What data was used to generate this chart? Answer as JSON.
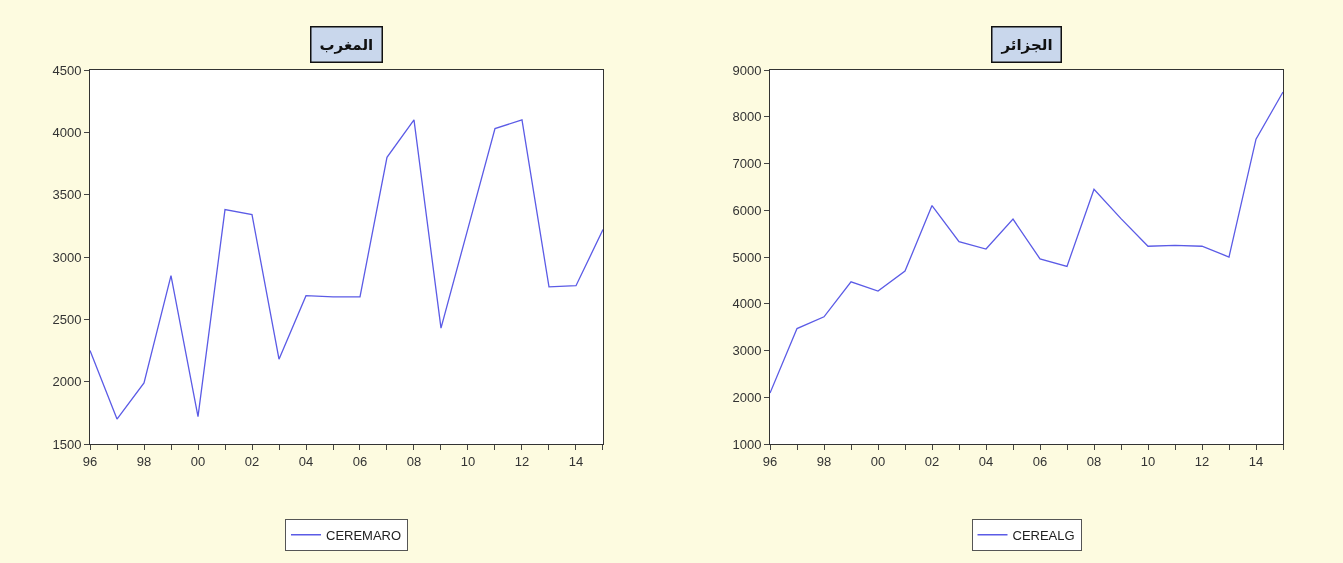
{
  "chart_data": [
    {
      "type": "line",
      "title": "المغرب",
      "x": [
        1996,
        1997,
        1998,
        1999,
        2000,
        2001,
        2002,
        2003,
        2004,
        2005,
        2006,
        2007,
        2008,
        2009,
        2010,
        2011,
        2012,
        2013,
        2014,
        2015
      ],
      "series": [
        {
          "name": "CEREMARO",
          "color": "#5b5be6",
          "values": [
            2250,
            1700,
            1990,
            2850,
            1720,
            3380,
            3340,
            2180,
            2690,
            2680,
            2680,
            3800,
            4100,
            2430,
            3230,
            4030,
            4100,
            2760,
            2770,
            3220
          ]
        }
      ],
      "xlim": [
        1996,
        2015
      ],
      "xticks": [
        {
          "value": 1996,
          "label": "96"
        },
        {
          "value": 1997,
          "label": null
        },
        {
          "value": 1998,
          "label": "98"
        },
        {
          "value": 1999,
          "label": null
        },
        {
          "value": 2000,
          "label": "00"
        },
        {
          "value": 2001,
          "label": null
        },
        {
          "value": 2002,
          "label": "02"
        },
        {
          "value": 2003,
          "label": null
        },
        {
          "value": 2004,
          "label": "04"
        },
        {
          "value": 2005,
          "label": null
        },
        {
          "value": 2006,
          "label": "06"
        },
        {
          "value": 2007,
          "label": null
        },
        {
          "value": 2008,
          "label": "08"
        },
        {
          "value": 2009,
          "label": null
        },
        {
          "value": 2010,
          "label": "10"
        },
        {
          "value": 2011,
          "label": null
        },
        {
          "value": 2012,
          "label": "12"
        },
        {
          "value": 2013,
          "label": null
        },
        {
          "value": 2014,
          "label": "14"
        },
        {
          "value": 2015,
          "label": null
        }
      ],
      "ylim": [
        1500,
        4500
      ],
      "yticks": [
        1500,
        2000,
        2500,
        3000,
        3500,
        4000,
        4500
      ],
      "legend": "bottom",
      "marker": "none",
      "line_style": "solid"
    },
    {
      "type": "line",
      "title": "الجزائر",
      "x": [
        1996,
        1997,
        1998,
        1999,
        2000,
        2001,
        2002,
        2003,
        2004,
        2005,
        2006,
        2007,
        2008,
        2009,
        2010,
        2011,
        2012,
        2013,
        2014,
        2015
      ],
      "series": [
        {
          "name": "CEREALG",
          "color": "#5b5be6",
          "values": [
            2090,
            3470,
            3720,
            4470,
            4270,
            4700,
            6100,
            5330,
            5170,
            5810,
            4960,
            4800,
            6450,
            5820,
            5230,
            5250,
            5230,
            5000,
            7520,
            8530
          ]
        }
      ],
      "xlim": [
        1996,
        2015
      ],
      "xticks": [
        {
          "value": 1996,
          "label": "96"
        },
        {
          "value": 1997,
          "label": null
        },
        {
          "value": 1998,
          "label": "98"
        },
        {
          "value": 1999,
          "label": null
        },
        {
          "value": 2000,
          "label": "00"
        },
        {
          "value": 2001,
          "label": null
        },
        {
          "value": 2002,
          "label": "02"
        },
        {
          "value": 2003,
          "label": null
        },
        {
          "value": 2004,
          "label": "04"
        },
        {
          "value": 2005,
          "label": null
        },
        {
          "value": 2006,
          "label": "06"
        },
        {
          "value": 2007,
          "label": null
        },
        {
          "value": 2008,
          "label": "08"
        },
        {
          "value": 2009,
          "label": null
        },
        {
          "value": 2010,
          "label": "10"
        },
        {
          "value": 2011,
          "label": null
        },
        {
          "value": 2012,
          "label": "12"
        },
        {
          "value": 2013,
          "label": null
        },
        {
          "value": 2014,
          "label": "14"
        },
        {
          "value": 2015,
          "label": null
        }
      ],
      "ylim": [
        1000,
        9000
      ],
      "yticks": [
        1000,
        2000,
        3000,
        4000,
        5000,
        6000,
        7000,
        8000,
        9000
      ],
      "legend": "bottom",
      "marker": "none",
      "line_style": "solid"
    }
  ]
}
